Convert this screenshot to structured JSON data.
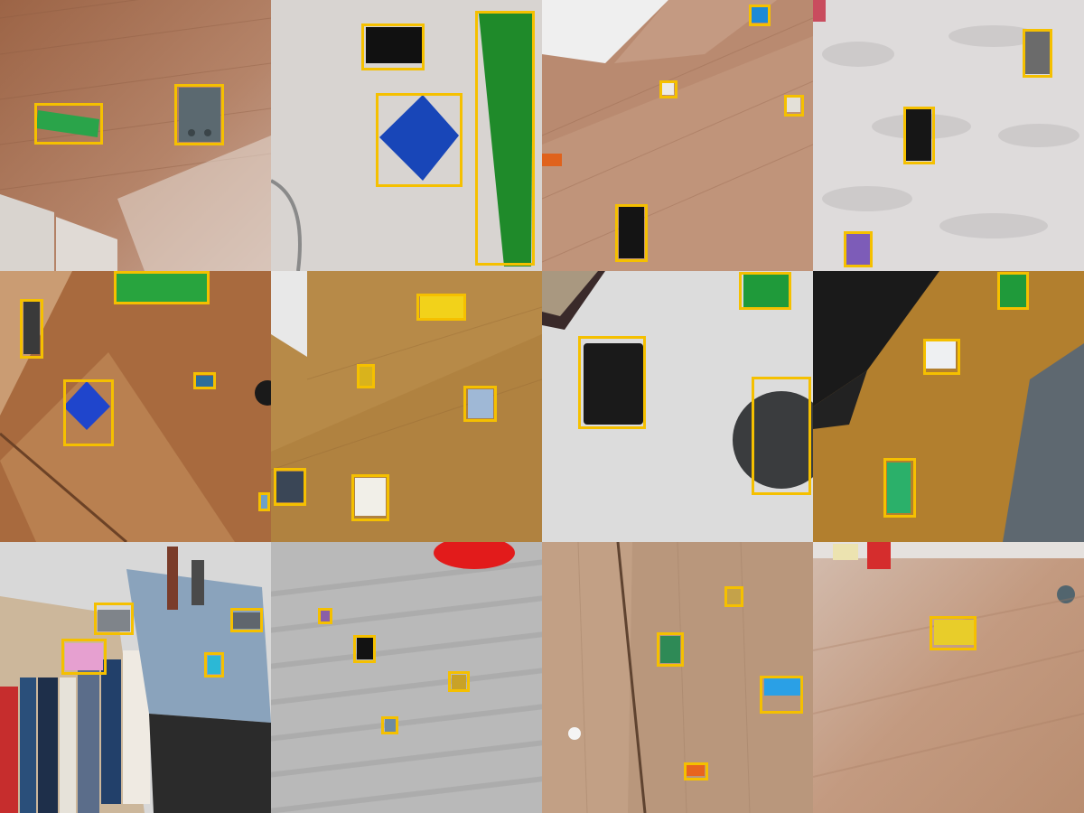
{
  "grid": {
    "rows": 3,
    "cols": 4
  },
  "box_color": "#f5c000",
  "tiles": [
    {
      "surface": "wood-floor",
      "bg": "#a86f4f",
      "detections": 2
    },
    {
      "surface": "white-table",
      "bg": "#d7d3d0",
      "detections": 3
    },
    {
      "surface": "wood-floor",
      "bg": "#b98a70",
      "detections": 5
    },
    {
      "surface": "white-fur-rug",
      "bg": "#dedbdb",
      "detections": 3
    },
    {
      "surface": "wood-floor-sunlit",
      "bg": "#a86a3e",
      "detections": 5
    },
    {
      "surface": "wood-desk",
      "bg": "#b78a48",
      "detections": 6
    },
    {
      "surface": "white-desk",
      "bg": "#dcdcdc",
      "detections": 4
    },
    {
      "surface": "wood-desk",
      "bg": "#b27f2e",
      "detections": 3
    },
    {
      "surface": "bookshelf",
      "bg": "#d8d8d8",
      "detections": 4
    },
    {
      "surface": "grey-knit-blanket",
      "bg": "#b9b9b9",
      "detections": 4
    },
    {
      "surface": "wood-floor",
      "bg": "#b9977c",
      "detections": 5
    },
    {
      "surface": "wood-floor-blurred",
      "bg": "#c9a690",
      "detections": 1
    }
  ]
}
